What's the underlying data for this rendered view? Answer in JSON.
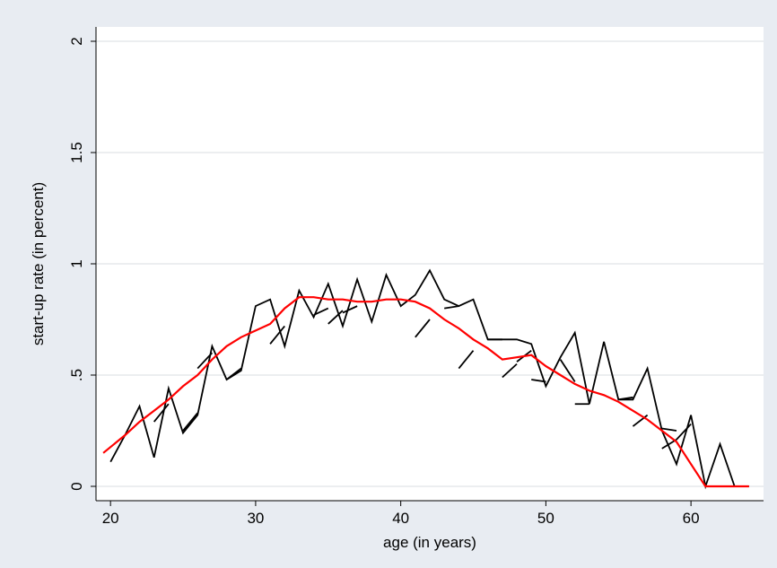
{
  "chart_data": {
    "type": "line",
    "xlabel": "age (in years)",
    "ylabel": "start-up rate (in percent)",
    "xlim": [
      19,
      65
    ],
    "ylim": [
      0,
      2
    ],
    "x_ticks": [
      20,
      30,
      40,
      50,
      60
    ],
    "y_ticks": [
      {
        "value": 0,
        "label": "0"
      },
      {
        "value": 0.5,
        "label": ".5"
      },
      {
        "value": 1,
        "label": "1"
      },
      {
        "value": 1.5,
        "label": "1.5"
      },
      {
        "value": 2,
        "label": "2"
      }
    ],
    "grid": true,
    "legend": "none",
    "colors": {
      "background": "#e8ecf2",
      "plot_area": "#ffffff",
      "grid": "#e0e3e8",
      "raw": "#000000",
      "smoothed": "#ff0000"
    },
    "series": [
      {
        "color": "#000000",
        "x": [
          20,
          21,
          22,
          23,
          24,
          25,
          26,
          27,
          28,
          29,
          30,
          31,
          32,
          33,
          34,
          35,
          36,
          37,
          38,
          39,
          40,
          41,
          42,
          43,
          44,
          45,
          46,
          47,
          48,
          49,
          50,
          51,
          52,
          53,
          54,
          55,
          56,
          57,
          58,
          59,
          60,
          61,
          62,
          63,
          64
        ],
        "values": [
          0.11,
          0.23,
          0.36,
          0.13,
          0.44,
          0.24,
          0.32,
          0.63,
          0.48,
          0.52,
          0.81,
          0.84,
          0.63,
          0.88,
          0.76,
          0.91,
          0.72,
          0.93,
          0.74,
          0.95,
          0.81,
          0.86,
          0.97,
          0.84,
          0.81,
          0.84,
          0.66,
          0.66,
          0.66,
          0.64,
          0.45,
          0.58,
          0.69,
          0.37,
          0.65,
          0.39,
          0.39,
          0.53,
          0.25,
          0.1,
          0.32,
          0.0,
          0.19,
          0.0,
          0.0
        ]
      },
      {
        "color": "#ff0000",
        "x": [
          19.5,
          21,
          22,
          23,
          24,
          25,
          26,
          27,
          28,
          29,
          30,
          31,
          32,
          33,
          34,
          35,
          36,
          37,
          38,
          39,
          40,
          41,
          42,
          43,
          44,
          45,
          46,
          47,
          48,
          49,
          50,
          51,
          52,
          53,
          54,
          55,
          56,
          57,
          58,
          59,
          60,
          61,
          62,
          63,
          64
        ],
        "values": [
          0.15,
          0.23,
          0.29,
          0.34,
          0.39,
          0.45,
          0.5,
          0.57,
          0.63,
          0.67,
          0.7,
          0.73,
          0.8,
          0.85,
          0.85,
          0.84,
          0.84,
          0.83,
          0.83,
          0.84,
          0.84,
          0.83,
          0.8,
          0.75,
          0.71,
          0.66,
          0.62,
          0.57,
          0.58,
          0.59,
          0.54,
          0.5,
          0.46,
          0.43,
          0.41,
          0.38,
          0.34,
          0.3,
          0.25,
          0.2,
          0.1,
          0.0,
          0.0,
          0.0,
          0.0
        ]
      }
    ],
    "segments": [
      [
        [
          23,
          0.29
        ],
        [
          24,
          0.37
        ]
      ],
      [
        [
          25,
          0.25
        ],
        [
          26,
          0.33
        ]
      ],
      [
        [
          26,
          0.53
        ],
        [
          27,
          0.6
        ]
      ],
      [
        [
          28,
          0.48
        ],
        [
          29,
          0.53
        ]
      ],
      [
        [
          31,
          0.64
        ],
        [
          32,
          0.72
        ]
      ],
      [
        [
          34,
          0.77
        ],
        [
          35,
          0.8
        ]
      ],
      [
        [
          35,
          0.73
        ],
        [
          36,
          0.79
        ]
      ],
      [
        [
          36,
          0.78
        ],
        [
          37,
          0.81
        ]
      ],
      [
        [
          41,
          0.67
        ],
        [
          42,
          0.75
        ]
      ],
      [
        [
          43,
          0.8
        ],
        [
          44,
          0.81
        ]
      ],
      [
        [
          44,
          0.53
        ],
        [
          45,
          0.61
        ]
      ],
      [
        [
          46,
          0.66
        ],
        [
          47,
          0.66
        ]
      ],
      [
        [
          47,
          0.49
        ],
        [
          48,
          0.55
        ]
      ],
      [
        [
          48,
          0.56
        ],
        [
          49,
          0.61
        ]
      ],
      [
        [
          49,
          0.48
        ],
        [
          50,
          0.47
        ]
      ],
      [
        [
          51,
          0.57
        ],
        [
          52,
          0.47
        ]
      ],
      [
        [
          52,
          0.37
        ],
        [
          53,
          0.37
        ]
      ],
      [
        [
          55,
          0.39
        ],
        [
          56,
          0.4
        ]
      ],
      [
        [
          56,
          0.27
        ],
        [
          57,
          0.32
        ]
      ],
      [
        [
          58,
          0.26
        ],
        [
          59,
          0.25
        ]
      ],
      [
        [
          58,
          0.17
        ],
        [
          59,
          0.21
        ]
      ],
      [
        [
          59,
          0.21
        ],
        [
          60,
          0.28
        ]
      ]
    ]
  }
}
